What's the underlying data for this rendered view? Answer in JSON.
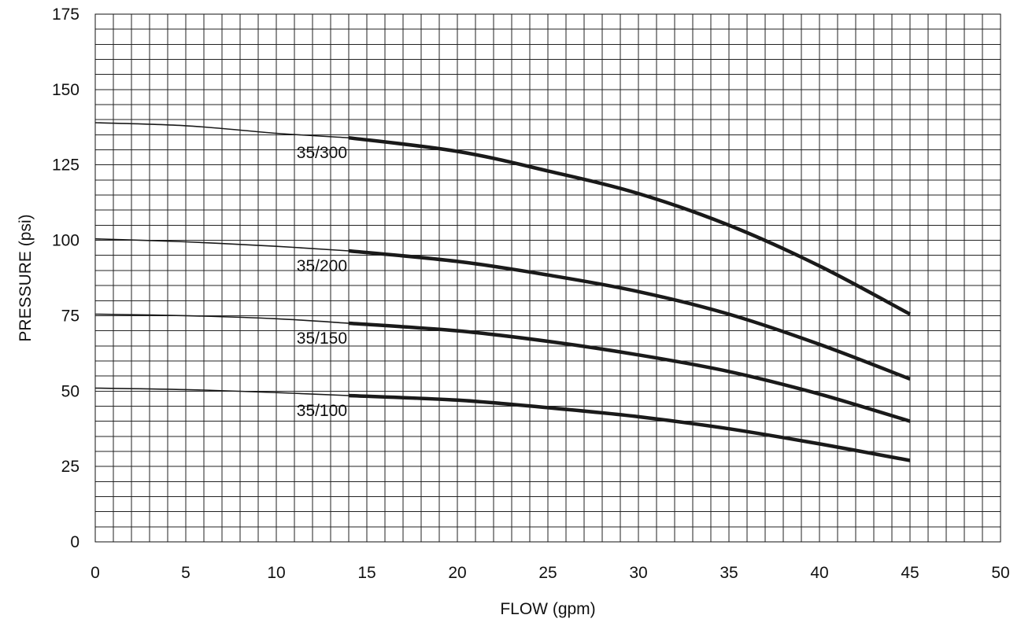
{
  "chart_data": {
    "type": "line",
    "title": "",
    "xlabel": "FLOW (gpm)",
    "ylabel": "PRESSURE (psi)",
    "xlim": [
      0,
      50
    ],
    "ylim": [
      0,
      175
    ],
    "x_ticks": [
      "0",
      "5",
      "10",
      "15",
      "20",
      "25",
      "30",
      "35",
      "40",
      "45",
      "50"
    ],
    "y_ticks": [
      "0",
      "25",
      "50",
      "75",
      "100",
      "125",
      "150",
      "175"
    ],
    "grid": "on",
    "grid_minor_step_x": 1,
    "grid_minor_step_y": 5,
    "line_color": "#1a1a1a",
    "thin_segment_until_x": 14,
    "series": [
      {
        "name": "35/300",
        "points": [
          [
            0,
            139
          ],
          [
            5,
            138
          ],
          [
            10,
            135.5
          ],
          [
            14,
            134
          ],
          [
            20,
            129.5
          ],
          [
            25,
            123
          ],
          [
            30,
            115.5
          ],
          [
            35,
            105
          ],
          [
            40,
            91.5
          ],
          [
            45,
            75.5
          ]
        ]
      },
      {
        "name": "35/200",
        "points": [
          [
            0,
            100.5
          ],
          [
            5,
            99.5
          ],
          [
            10,
            98
          ],
          [
            14,
            96.5
          ],
          [
            20,
            93
          ],
          [
            25,
            88.5
          ],
          [
            30,
            83
          ],
          [
            35,
            75.5
          ],
          [
            40,
            65.5
          ],
          [
            45,
            54
          ]
        ]
      },
      {
        "name": "35/150",
        "points": [
          [
            0,
            75.5
          ],
          [
            5,
            75
          ],
          [
            10,
            74
          ],
          [
            14,
            72.5
          ],
          [
            20,
            70
          ],
          [
            25,
            66.5
          ],
          [
            30,
            62
          ],
          [
            35,
            56.5
          ],
          [
            40,
            49
          ],
          [
            45,
            40
          ]
        ]
      },
      {
        "name": "35/100",
        "points": [
          [
            0,
            51
          ],
          [
            5,
            50.5
          ],
          [
            10,
            49.5
          ],
          [
            14,
            48.5
          ],
          [
            20,
            47
          ],
          [
            25,
            44.5
          ],
          [
            30,
            41.5
          ],
          [
            35,
            37.5
          ],
          [
            40,
            32.5
          ],
          [
            45,
            27
          ]
        ]
      }
    ]
  }
}
